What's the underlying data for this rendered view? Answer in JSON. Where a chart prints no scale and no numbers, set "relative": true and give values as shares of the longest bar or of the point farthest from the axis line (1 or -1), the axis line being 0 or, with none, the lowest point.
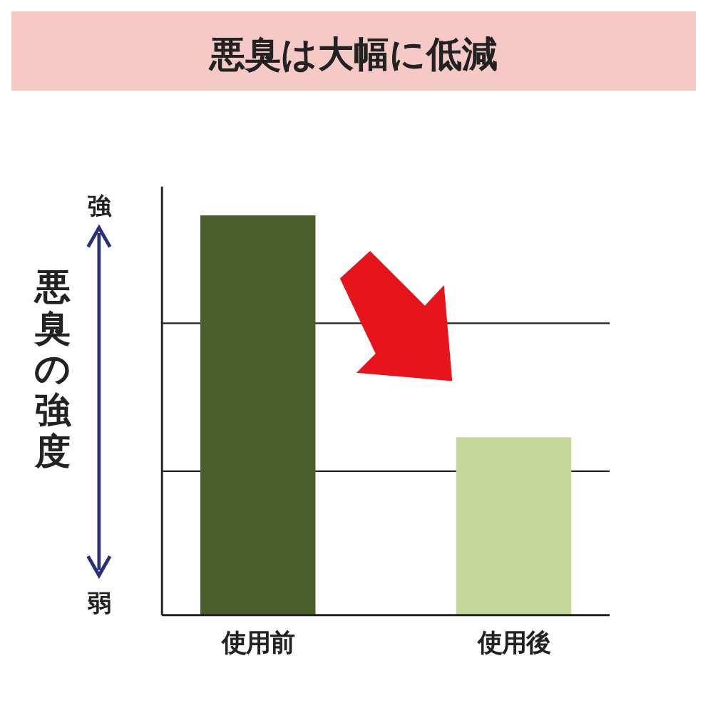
{
  "chart_data": {
    "type": "bar",
    "title": "悪臭は大幅に低減",
    "ylabel": "悪臭の強度",
    "relative": true,
    "categories": [
      "使用前",
      "使用後"
    ],
    "values": [
      1,
      0.445
    ],
    "colors": [
      "#4a5e2a",
      "#c5d89a"
    ],
    "ref_lines": [
      {
        "axis": "y",
        "value": 0.36,
        "color": "#222222"
      },
      {
        "axis": "y",
        "value": 0.73,
        "color": "#222222"
      }
    ],
    "annotations": [
      "強",
      "弱"
    ]
  }
}
